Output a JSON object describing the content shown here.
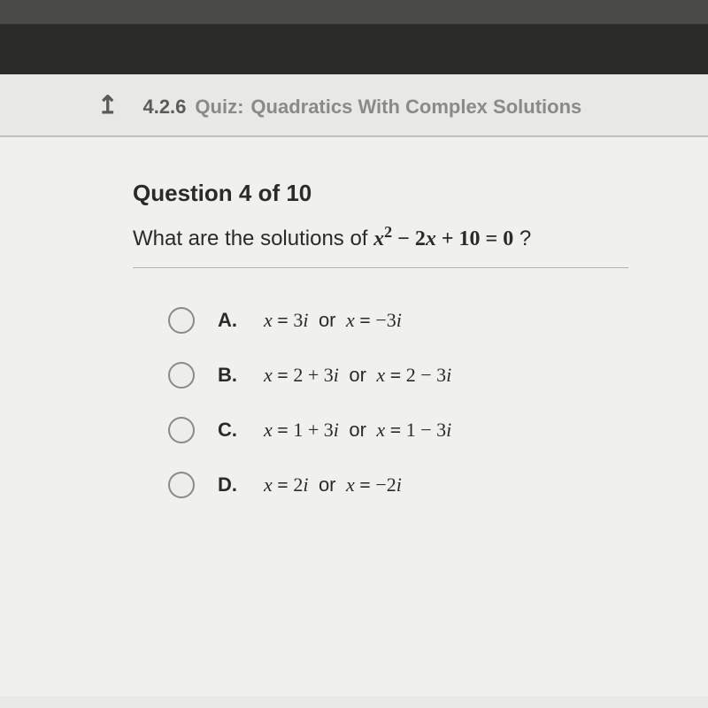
{
  "colors": {
    "page_bg": "#e8e8e4",
    "content_bg": "#f0f0ec",
    "top_bar": "#4a4a48",
    "dark_bar": "#2a2a28",
    "header_text_strong": "#5a5a56",
    "header_text_muted": "#8a8a86",
    "body_text": "#2a2a28",
    "divider": "#b0b0ac",
    "radio_border": "#8a8a86"
  },
  "typography": {
    "base_family": "Arial, Helvetica, sans-serif",
    "math_family": "Times New Roman, serif",
    "header_size_pt": 16,
    "question_number_size_pt": 20,
    "question_text_size_pt": 18,
    "answer_size_pt": 16
  },
  "header": {
    "back_glyph": "↥",
    "quiz_number": "4.2.6",
    "quiz_label": "Quiz:",
    "quiz_title": "Quadratics With Complex Solutions"
  },
  "question": {
    "number_label": "Question 4 of 10",
    "prompt_prefix": "What are the solutions of ",
    "equation_html": "x<span class='sup'>2</span><span class='op'> − 2</span>x<span class='op'> + 10 = 0</span>",
    "prompt_suffix": "?"
  },
  "answers": [
    {
      "letter": "A.",
      "html": "<span class='xv'>x</span> <span class='eq'>=</span> 3<span class='iv'>i</span> <span class='or-word'>or</span> <span class='xv'>x</span> <span class='eq'>=</span> −3<span class='iv'>i</span>"
    },
    {
      "letter": "B.",
      "html": "<span class='xv'>x</span> <span class='eq'>=</span> 2 + 3<span class='iv'>i</span> <span class='or-word'>or</span> <span class='xv'>x</span> <span class='eq'>=</span> 2 − 3<span class='iv'>i</span>"
    },
    {
      "letter": "C.",
      "html": "<span class='xv'>x</span> <span class='eq'>=</span> 1 + 3<span class='iv'>i</span> <span class='or-word'>or</span> <span class='xv'>x</span> <span class='eq'>=</span> 1 − 3<span class='iv'>i</span>"
    },
    {
      "letter": "D.",
      "html": "<span class='xv'>x</span> <span class='eq'>=</span> 2<span class='iv'>i</span> <span class='or-word'>or</span> <span class='xv'>x</span> <span class='eq'>=</span> −2<span class='iv'>i</span>"
    }
  ]
}
